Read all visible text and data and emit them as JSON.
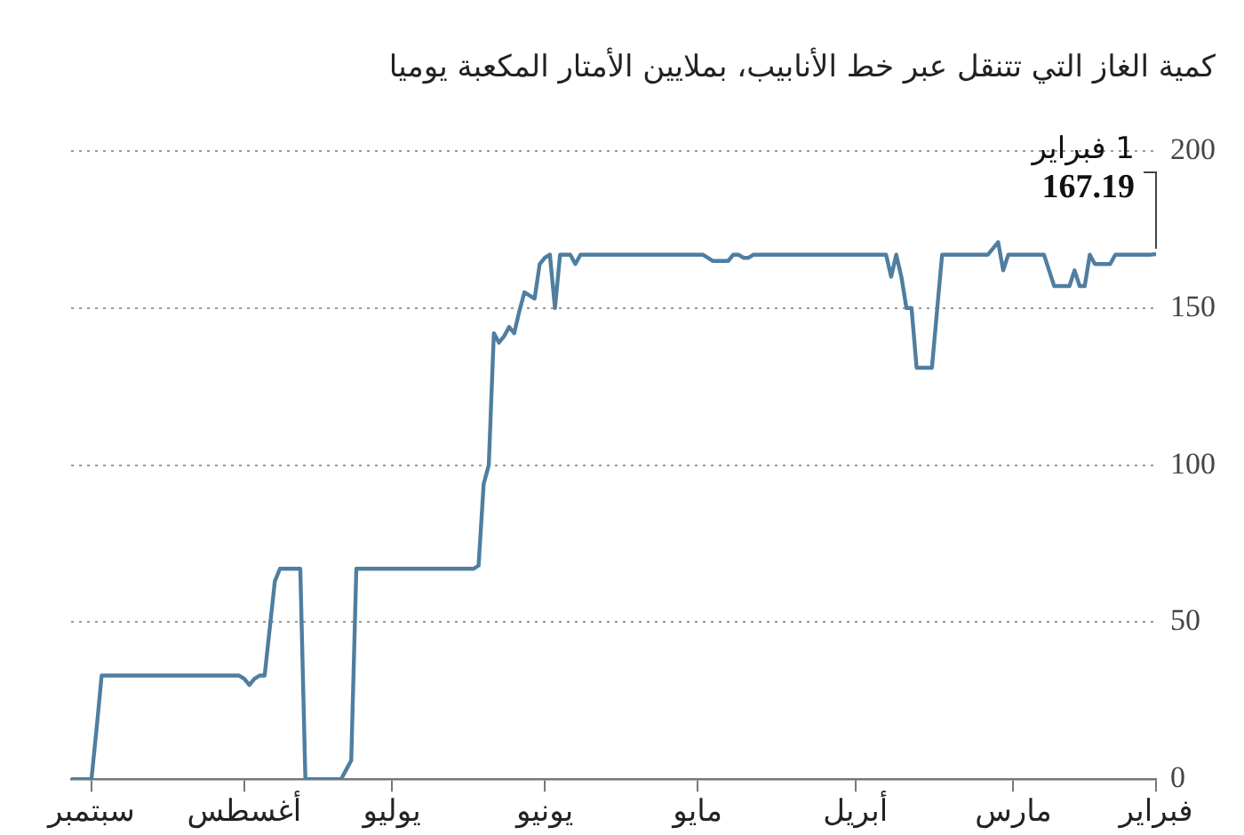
{
  "chart_data": {
    "type": "line",
    "title": "كمية الغاز التي تتنقل عبر خط الأنابيب، بملايين الأمتار المكعبة يوميا",
    "categories": [
      null,
      null,
      null,
      null,
      "سبتمبر",
      null,
      null,
      null,
      null,
      null,
      null,
      null,
      null,
      null,
      null,
      null,
      null,
      null,
      null,
      null,
      null,
      null,
      null,
      null,
      null,
      null,
      null,
      null,
      null,
      null,
      null,
      null,
      null,
      null,
      "أغسطس",
      null,
      null,
      null,
      null,
      null,
      null,
      null,
      null,
      null,
      null,
      null,
      null,
      null,
      null,
      null,
      null,
      null,
      null,
      null,
      null,
      null,
      null,
      null,
      null,
      null,
      null,
      null,
      null,
      "يوليو",
      null,
      null,
      null,
      null,
      null,
      null,
      null,
      null,
      null,
      null,
      null,
      null,
      null,
      null,
      null,
      null,
      null,
      null,
      null,
      null,
      null,
      null,
      null,
      null,
      null,
      null,
      null,
      null,
      null,
      "يونيو",
      null,
      null,
      null,
      null,
      null,
      null,
      null,
      null,
      null,
      null,
      null,
      null,
      null,
      null,
      null,
      null,
      null,
      null,
      null,
      null,
      null,
      null,
      null,
      null,
      null,
      null,
      null,
      null,
      null,
      "مايو",
      null,
      null,
      null,
      null,
      null,
      null,
      null,
      null,
      null,
      null,
      null,
      null,
      null,
      null,
      null,
      null,
      null,
      null,
      null,
      null,
      null,
      null,
      null,
      null,
      null,
      null,
      null,
      null,
      null,
      null,
      "أبريل",
      null,
      null,
      null,
      null,
      null,
      null,
      null,
      null,
      null,
      null,
      null,
      null,
      null,
      null,
      null,
      null,
      null,
      null,
      null,
      null,
      null,
      null,
      null,
      null,
      null,
      null,
      null,
      null,
      null,
      null,
      "مارس",
      null,
      null,
      null,
      null,
      null,
      null,
      null,
      null,
      null,
      null,
      null,
      null,
      null,
      null,
      null,
      null,
      null,
      null,
      null,
      null,
      null,
      null,
      null,
      null,
      null,
      null,
      null,
      "فبراير"
    ],
    "values": [
      0,
      0,
      0,
      0,
      0,
      16,
      33,
      33,
      33,
      33,
      33,
      33,
      33,
      33,
      33,
      33,
      33,
      33,
      33,
      33,
      33,
      33,
      33,
      33,
      33,
      33,
      33,
      33,
      33,
      33,
      33,
      33,
      33,
      33,
      32,
      30,
      32,
      33,
      33,
      48,
      63,
      67,
      67,
      67,
      67,
      67,
      0,
      0,
      0,
      0,
      0,
      0,
      0,
      0,
      3,
      6,
      67,
      67,
      67,
      67,
      67,
      67,
      67,
      67,
      67,
      67,
      67,
      67,
      67,
      67,
      67,
      67,
      67,
      67,
      67,
      67,
      67,
      67,
      67,
      67,
      68,
      94,
      100,
      142,
      139,
      141,
      144,
      142,
      149,
      155,
      154,
      153,
      164,
      166,
      167,
      150,
      167,
      167,
      167,
      164,
      167,
      167,
      167,
      167,
      167,
      167,
      167,
      167,
      167,
      167,
      167,
      167,
      167,
      167,
      167,
      167,
      167,
      167,
      167,
      167,
      167,
      167,
      167,
      167,
      167,
      166,
      165,
      165,
      165,
      165,
      167,
      167,
      166,
      166,
      167,
      167,
      167,
      167,
      167,
      167,
      167,
      167,
      167,
      167,
      167,
      167,
      167,
      167,
      167,
      167,
      167,
      167,
      167,
      167,
      167,
      167,
      167,
      167,
      167,
      167,
      167,
      160,
      167,
      160,
      150,
      150,
      131,
      131,
      131,
      131,
      149,
      167,
      167,
      167,
      167,
      167,
      167,
      167,
      167,
      167,
      167,
      169,
      171,
      162,
      167,
      167,
      167,
      167,
      167,
      167,
      167,
      167,
      162,
      157,
      157,
      157,
      157,
      162,
      157,
      157,
      167,
      164,
      164,
      164,
      164,
      167,
      167,
      167,
      167,
      167,
      167,
      167,
      167,
      167.19
    ],
    "color": "#4f7ea0",
    "marker": "none",
    "ylim": [
      0,
      200
    ],
    "yticks": [
      0,
      50,
      100,
      150,
      200
    ],
    "grid": "y",
    "annotations": [
      {
        "text": "1 فبراير",
        "x": "فبراير",
        "y": 167.19
      },
      {
        "text": "167.19",
        "x": "فبراير",
        "y": 167.19
      }
    ]
  }
}
